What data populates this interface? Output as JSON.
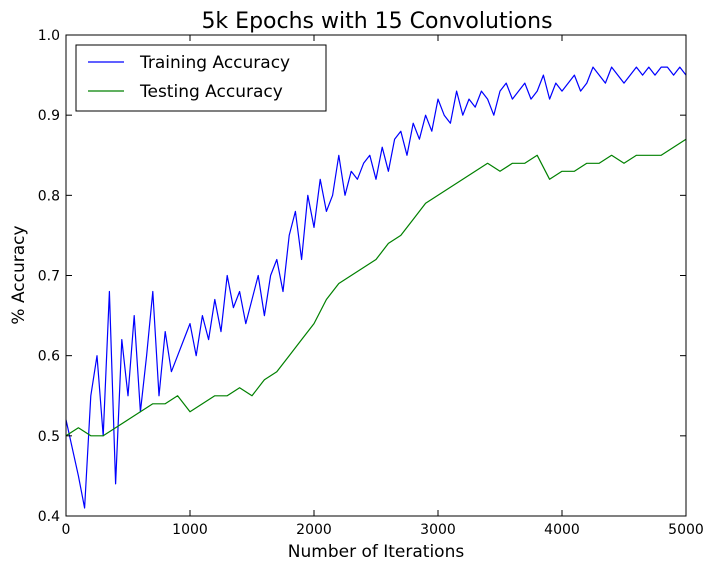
{
  "chart_data": {
    "type": "line",
    "title": "5k Epochs with 15 Convolutions",
    "xlabel": "Number of Iterations",
    "ylabel": "% Accuracy",
    "xlim": [
      0,
      5000
    ],
    "ylim": [
      0.4,
      1.0
    ],
    "x_ticks": [
      0,
      1000,
      2000,
      3000,
      4000,
      5000
    ],
    "x_tick_labels": [
      "0",
      "1000",
      "2000",
      "3000",
      "4000",
      "5000"
    ],
    "y_ticks": [
      0.4,
      0.5,
      0.6,
      0.7,
      0.8,
      0.9,
      1.0
    ],
    "y_tick_labels": [
      "0.4",
      "0.5",
      "0.6",
      "0.7",
      "0.8",
      "0.9",
      "1.0"
    ],
    "grid": false,
    "legend_position": "top-left",
    "series": [
      {
        "name": "Training Accuracy",
        "color": "#0000ff",
        "x": [
          0,
          100,
          150,
          200,
          250,
          300,
          350,
          400,
          450,
          500,
          550,
          600,
          650,
          700,
          750,
          800,
          850,
          900,
          950,
          1000,
          1050,
          1100,
          1150,
          1200,
          1250,
          1300,
          1350,
          1400,
          1450,
          1500,
          1550,
          1600,
          1650,
          1700,
          1750,
          1800,
          1850,
          1900,
          1950,
          2000,
          2050,
          2100,
          2150,
          2200,
          2250,
          2300,
          2350,
          2400,
          2450,
          2500,
          2550,
          2600,
          2650,
          2700,
          2750,
          2800,
          2850,
          2900,
          2950,
          3000,
          3050,
          3100,
          3150,
          3200,
          3250,
          3300,
          3350,
          3400,
          3450,
          3500,
          3550,
          3600,
          3650,
          3700,
          3750,
          3800,
          3850,
          3900,
          3950,
          4000,
          4050,
          4100,
          4150,
          4200,
          4250,
          4300,
          4350,
          4400,
          4450,
          4500,
          4550,
          4600,
          4650,
          4700,
          4750,
          4800,
          4850,
          4900,
          4950,
          5000
        ],
        "values": [
          0.52,
          0.45,
          0.41,
          0.55,
          0.6,
          0.5,
          0.68,
          0.44,
          0.62,
          0.55,
          0.65,
          0.53,
          0.6,
          0.68,
          0.55,
          0.63,
          0.58,
          0.6,
          0.62,
          0.64,
          0.6,
          0.65,
          0.62,
          0.67,
          0.63,
          0.7,
          0.66,
          0.68,
          0.64,
          0.67,
          0.7,
          0.65,
          0.7,
          0.72,
          0.68,
          0.75,
          0.78,
          0.72,
          0.8,
          0.76,
          0.82,
          0.78,
          0.8,
          0.85,
          0.8,
          0.83,
          0.82,
          0.84,
          0.85,
          0.82,
          0.86,
          0.83,
          0.87,
          0.88,
          0.85,
          0.89,
          0.87,
          0.9,
          0.88,
          0.92,
          0.9,
          0.89,
          0.93,
          0.9,
          0.92,
          0.91,
          0.93,
          0.92,
          0.9,
          0.93,
          0.94,
          0.92,
          0.93,
          0.94,
          0.92,
          0.93,
          0.95,
          0.92,
          0.94,
          0.93,
          0.94,
          0.95,
          0.93,
          0.94,
          0.96,
          0.95,
          0.94,
          0.96,
          0.95,
          0.94,
          0.95,
          0.96,
          0.95,
          0.96,
          0.95,
          0.96,
          0.96,
          0.95,
          0.96,
          0.95
        ]
      },
      {
        "name": "Testing Accuracy",
        "color": "#008000",
        "x": [
          0,
          100,
          200,
          300,
          400,
          500,
          600,
          700,
          800,
          900,
          1000,
          1100,
          1200,
          1300,
          1400,
          1500,
          1600,
          1700,
          1800,
          1900,
          2000,
          2100,
          2200,
          2300,
          2400,
          2500,
          2600,
          2700,
          2800,
          2900,
          3000,
          3100,
          3200,
          3300,
          3400,
          3500,
          3600,
          3700,
          3800,
          3900,
          4000,
          4100,
          4200,
          4300,
          4400,
          4500,
          4600,
          4700,
          4800,
          4900,
          5000
        ],
        "values": [
          0.5,
          0.51,
          0.5,
          0.5,
          0.51,
          0.52,
          0.53,
          0.54,
          0.54,
          0.55,
          0.53,
          0.54,
          0.55,
          0.55,
          0.56,
          0.55,
          0.57,
          0.58,
          0.6,
          0.62,
          0.64,
          0.67,
          0.69,
          0.7,
          0.71,
          0.72,
          0.74,
          0.75,
          0.77,
          0.79,
          0.8,
          0.81,
          0.82,
          0.83,
          0.84,
          0.83,
          0.84,
          0.84,
          0.85,
          0.82,
          0.83,
          0.83,
          0.84,
          0.84,
          0.85,
          0.84,
          0.85,
          0.85,
          0.85,
          0.86,
          0.87
        ]
      }
    ]
  }
}
